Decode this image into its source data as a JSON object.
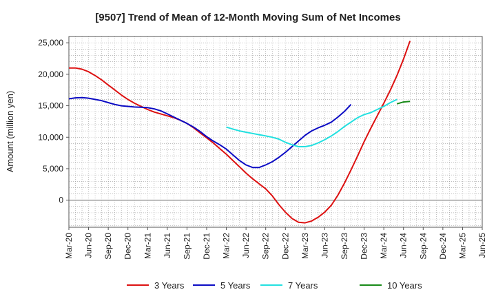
{
  "chart_data": {
    "type": "line",
    "title": "[9507]  Trend of Mean of 12-Month Moving Sum of Net Incomes",
    "xlabel": "",
    "ylabel": "Amount (million yen)",
    "ylim": [
      -4300,
      26000
    ],
    "yticks": [
      0,
      5000,
      10000,
      15000,
      20000,
      25000
    ],
    "ytick_labels": [
      "0",
      "5,000",
      "10,000",
      "15,000",
      "20,000",
      "25,000"
    ],
    "xtick_labels": [
      "Mar-20",
      "Jun-20",
      "Sep-20",
      "Dec-20",
      "Mar-21",
      "Jun-21",
      "Sep-21",
      "Dec-21",
      "Mar-22",
      "Jun-22",
      "Sep-22",
      "Dec-22",
      "Mar-23",
      "Jun-23",
      "Sep-23",
      "Dec-23",
      "Mar-24",
      "Jun-24",
      "Sep-24",
      "Dec-24",
      "Mar-25",
      "Jun-25"
    ],
    "grid": true,
    "legend_position": "bottom",
    "series": [
      {
        "name": "3 Years",
        "color": "#dd1111",
        "start_index": 0,
        "values": [
          21000,
          21000,
          20800,
          20400,
          19800,
          19100,
          18300,
          17500,
          16700,
          16000,
          15400,
          14900,
          14400,
          14000,
          13700,
          13400,
          13100,
          12700,
          12200,
          11500,
          10700,
          9900,
          9100,
          8200,
          7300,
          6300,
          5300,
          4300,
          3400,
          2600,
          1800,
          700,
          -700,
          -1900,
          -2900,
          -3500,
          -3600,
          -3300,
          -2700,
          -1900,
          -800,
          800,
          2700,
          4800,
          7000,
          9300,
          11400,
          13400,
          15400,
          17500,
          19800,
          22400,
          25300
        ]
      },
      {
        "name": "5 Years",
        "color": "#0b0bc4",
        "start_index": 0,
        "values": [
          16100,
          16250,
          16300,
          16200,
          16000,
          15800,
          15500,
          15200,
          15000,
          14900,
          14800,
          14750,
          14700,
          14500,
          14200,
          13700,
          13200,
          12700,
          12200,
          11600,
          10900,
          10100,
          9400,
          8800,
          8100,
          7200,
          6300,
          5600,
          5200,
          5200,
          5600,
          6100,
          6800,
          7600,
          8500,
          9400,
          10300,
          11000,
          11500,
          11900,
          12400,
          13200,
          14100,
          15200
        ]
      },
      {
        "name": "7 Years",
        "color": "#22e0e0",
        "start_index": 24,
        "values": [
          11600,
          11300,
          11000,
          10800,
          10600,
          10400,
          10200,
          10000,
          9700,
          9200,
          8800,
          8500,
          8500,
          8700,
          9100,
          9600,
          10200,
          10900,
          11700,
          12400,
          13100,
          13600,
          13900,
          14400,
          14900,
          15500,
          16000
        ]
      },
      {
        "name": "10 Years",
        "color": "#178a17",
        "start_index": 50,
        "values": [
          15300,
          15600,
          15700
        ]
      }
    ]
  }
}
